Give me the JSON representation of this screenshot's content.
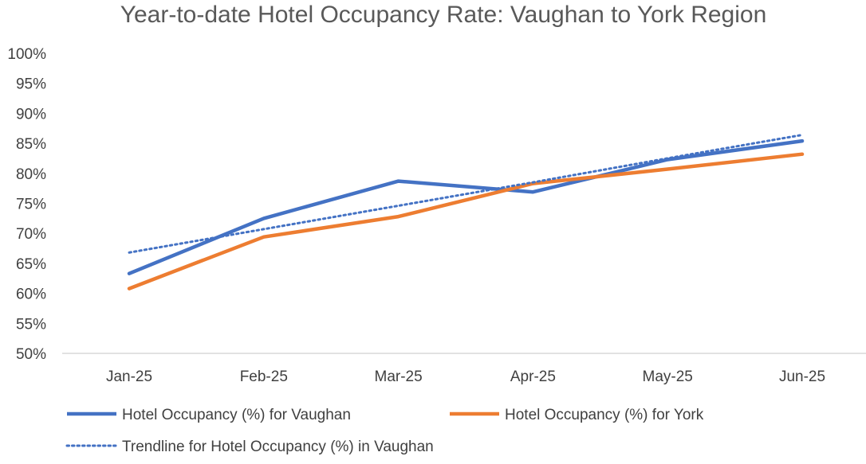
{
  "chart_data": {
    "type": "line",
    "title": "Year-to-date Hotel Occupancy Rate: Vaughan to York Region",
    "categories": [
      "Jan-25",
      "Feb-25",
      "Mar-25",
      "Apr-25",
      "May-25",
      "Jun-25"
    ],
    "y_ticks": [
      "50%",
      "55%",
      "60%",
      "65%",
      "70%",
      "75%",
      "80%",
      "85%",
      "90%",
      "95%",
      "100%"
    ],
    "ylim": [
      50,
      100
    ],
    "grid": false,
    "legend_position": "bottom",
    "series": [
      {
        "name": "Hotel Occupancy (%) for Vaughan",
        "values": [
          63.3,
          72.5,
          78.7,
          76.9,
          82.3,
          85.4
        ],
        "color": "#4472C4",
        "style": "solid"
      },
      {
        "name": "Hotel Occupancy (%) for York",
        "values": [
          60.8,
          69.4,
          72.8,
          78.3,
          80.7,
          83.2
        ],
        "color": "#ED7D31",
        "style": "solid"
      },
      {
        "name": "Trendline for Hotel Occupancy (%) in Vaughan",
        "values": [
          66.8,
          70.7,
          74.6,
          78.5,
          82.5,
          86.4
        ],
        "color": "#4472C4",
        "style": "dotted"
      }
    ]
  }
}
